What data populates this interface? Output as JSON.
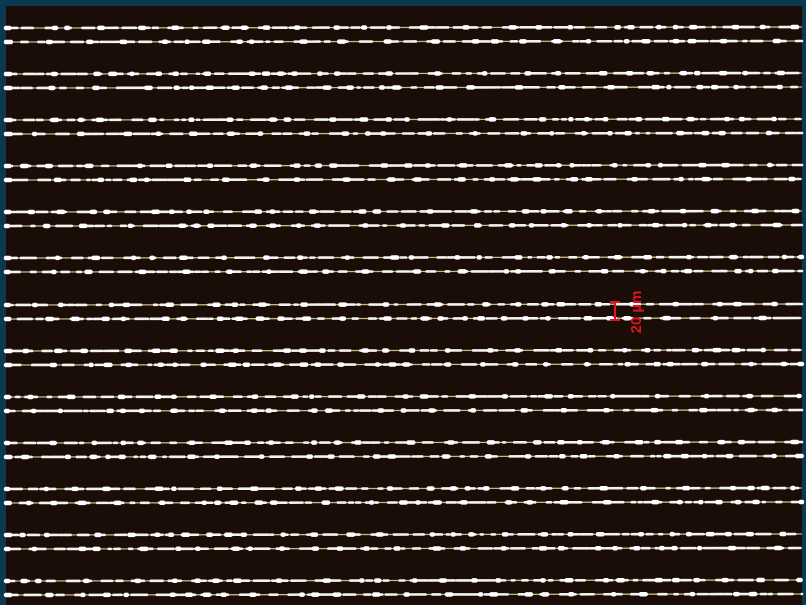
{
  "scale_bar": {
    "label": "20 µm"
  }
}
